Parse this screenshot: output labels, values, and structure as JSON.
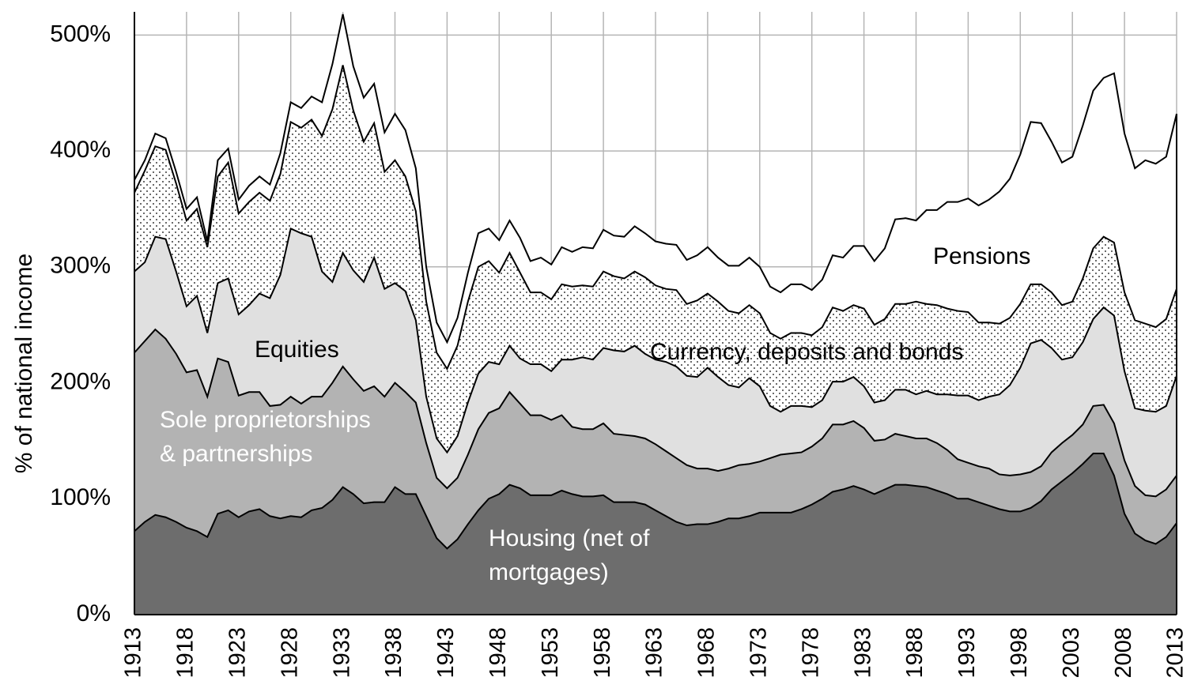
{
  "chart_data": {
    "type": "stacked_area",
    "y_label": "% of national income",
    "x": [
      1913,
      1914,
      1915,
      1916,
      1917,
      1918,
      1919,
      1920,
      1921,
      1922,
      1923,
      1924,
      1925,
      1926,
      1927,
      1928,
      1929,
      1930,
      1931,
      1932,
      1933,
      1934,
      1935,
      1936,
      1937,
      1938,
      1939,
      1940,
      1941,
      1942,
      1943,
      1944,
      1945,
      1946,
      1947,
      1948,
      1949,
      1950,
      1951,
      1952,
      1953,
      1954,
      1955,
      1956,
      1957,
      1958,
      1959,
      1960,
      1961,
      1962,
      1963,
      1964,
      1965,
      1966,
      1967,
      1968,
      1969,
      1970,
      1971,
      1972,
      1973,
      1974,
      1975,
      1976,
      1977,
      1978,
      1979,
      1980,
      1981,
      1982,
      1983,
      1984,
      1985,
      1986,
      1987,
      1988,
      1989,
      1990,
      1991,
      1992,
      1993,
      1994,
      1995,
      1996,
      1997,
      1998,
      1999,
      2000,
      2001,
      2002,
      2003,
      2004,
      2005,
      2006,
      2007,
      2008,
      2009,
      2010,
      2011,
      2012,
      2013
    ],
    "xlim": [
      1913,
      2013
    ],
    "xticks": [
      1913,
      1918,
      1923,
      1928,
      1933,
      1938,
      1943,
      1948,
      1953,
      1958,
      1963,
      1968,
      1973,
      1978,
      1983,
      1988,
      1993,
      1998,
      2003,
      2008,
      2013
    ],
    "ylim": [
      0,
      520
    ],
    "yticks": [
      {
        "value": 0,
        "label": "0%"
      },
      {
        "value": 100,
        "label": "100%"
      },
      {
        "value": 200,
        "label": "200%"
      },
      {
        "value": 300,
        "label": "300%"
      },
      {
        "value": 400,
        "label": "400%"
      },
      {
        "value": 500,
        "label": "500%"
      }
    ],
    "grid": true,
    "series": [
      {
        "name": "Housing (net of mortgages)",
        "color": "#6d6d6d",
        "values": [
          72,
          80,
          86,
          84,
          80,
          75,
          72,
          67,
          87,
          90,
          84,
          89,
          91,
          85,
          83,
          85,
          84,
          90,
          92,
          99,
          110,
          104,
          96,
          97,
          97,
          110,
          104,
          104,
          85,
          66,
          57,
          65,
          78,
          90,
          100,
          104,
          112,
          109,
          103,
          103,
          103,
          107,
          104,
          102,
          102,
          103,
          97,
          97,
          97,
          95,
          90,
          85,
          80,
          77,
          78,
          78,
          80,
          83,
          83,
          85,
          88,
          88,
          88,
          88,
          91,
          95,
          100,
          106,
          108,
          111,
          108,
          104,
          108,
          112,
          112,
          111,
          110,
          107,
          104,
          100,
          100,
          97,
          94,
          91,
          89,
          89,
          92,
          98,
          108,
          115,
          122,
          130,
          139,
          139,
          120,
          87,
          70,
          64,
          61,
          67,
          79
        ]
      },
      {
        "name": "Sole proprietorships & partnerships",
        "color": "#b3b3b3",
        "values": [
          154,
          156,
          160,
          154,
          145,
          134,
          139,
          121,
          134,
          128,
          105,
          103,
          101,
          95,
          98,
          103,
          98,
          98,
          96,
          101,
          104,
          99,
          97,
          100,
          91,
          90,
          88,
          79,
          63,
          52,
          52,
          53,
          60,
          70,
          74,
          74,
          80,
          73,
          69,
          69,
          65,
          65,
          58,
          58,
          58,
          62,
          59,
          58,
          57,
          57,
          57,
          56,
          55,
          52,
          48,
          48,
          44,
          43,
          46,
          45,
          44,
          47,
          50,
          51,
          49,
          50,
          52,
          58,
          56,
          56,
          53,
          46,
          43,
          44,
          42,
          41,
          42,
          41,
          38,
          34,
          31,
          31,
          32,
          30,
          31,
          32,
          31,
          30,
          32,
          33,
          33,
          34,
          41,
          42,
          45,
          46,
          41,
          39,
          41,
          41,
          41
        ]
      },
      {
        "name": "Equities",
        "color": "#e0e0e0",
        "values": [
          70,
          68,
          80,
          86,
          71,
          57,
          64,
          55,
          65,
          72,
          70,
          75,
          85,
          93,
          112,
          145,
          147,
          138,
          108,
          87,
          98,
          94,
          94,
          111,
          93,
          86,
          87,
          71,
          40,
          34,
          31,
          36,
          45,
          48,
          44,
          38,
          40,
          39,
          44,
          44,
          42,
          48,
          58,
          62,
          60,
          65,
          72,
          72,
          78,
          73,
          73,
          77,
          79,
          77,
          79,
          87,
          81,
          72,
          67,
          74,
          65,
          45,
          37,
          41,
          40,
          34,
          33,
          37,
          37,
          38,
          36,
          33,
          34,
          38,
          40,
          38,
          41,
          42,
          48,
          55,
          58,
          57,
          62,
          69,
          78,
          92,
          111,
          109,
          90,
          72,
          67,
          71,
          75,
          84,
          93,
          77,
          67,
          73,
          73,
          72,
          86
        ]
      },
      {
        "name": "Currency, deposits and bonds",
        "color": "#ffffff",
        "pattern": "dots",
        "values": [
          68,
          79,
          78,
          77,
          76,
          74,
          75,
          74,
          92,
          100,
          87,
          89,
          87,
          84,
          87,
          92,
          91,
          101,
          117,
          149,
          162,
          138,
          121,
          116,
          101,
          106,
          99,
          94,
          82,
          74,
          72,
          78,
          87,
          92,
          87,
          79,
          80,
          74,
          62,
          62,
          62,
          65,
          63,
          62,
          63,
          66,
          64,
          63,
          64,
          66,
          64,
          63,
          66,
          62,
          66,
          64,
          65,
          64,
          64,
          63,
          63,
          63,
          63,
          63,
          63,
          62,
          63,
          64,
          61,
          62,
          67,
          67,
          70,
          74,
          74,
          80,
          75,
          77,
          74,
          73,
          72,
          67,
          64,
          61,
          58,
          55,
          51,
          48,
          48,
          47,
          48,
          55,
          61,
          61,
          63,
          68,
          76,
          75,
          73,
          75,
          75
        ]
      },
      {
        "name": "Pensions",
        "color": "#ffffff",
        "values": [
          11,
          9,
          11,
          10,
          10,
          10,
          10,
          5,
          14,
          12,
          12,
          14,
          14,
          14,
          18,
          17,
          17,
          20,
          29,
          39,
          44,
          38,
          38,
          34,
          34,
          40,
          40,
          37,
          30,
          26,
          23,
          24,
          25,
          29,
          28,
          28,
          28,
          30,
          27,
          30,
          30,
          32,
          30,
          33,
          33,
          36,
          35,
          36,
          39,
          38,
          38,
          39,
          39,
          38,
          39,
          40,
          38,
          39,
          41,
          41,
          40,
          40,
          40,
          42,
          42,
          39,
          41,
          45,
          46,
          51,
          54,
          55,
          61,
          73,
          74,
          70,
          81,
          82,
          92,
          94,
          98,
          101,
          106,
          114,
          120,
          129,
          140,
          139,
          130,
          123,
          125,
          132,
          136,
          137,
          146,
          137,
          131,
          141,
          141,
          140,
          151
        ]
      }
    ]
  }
}
